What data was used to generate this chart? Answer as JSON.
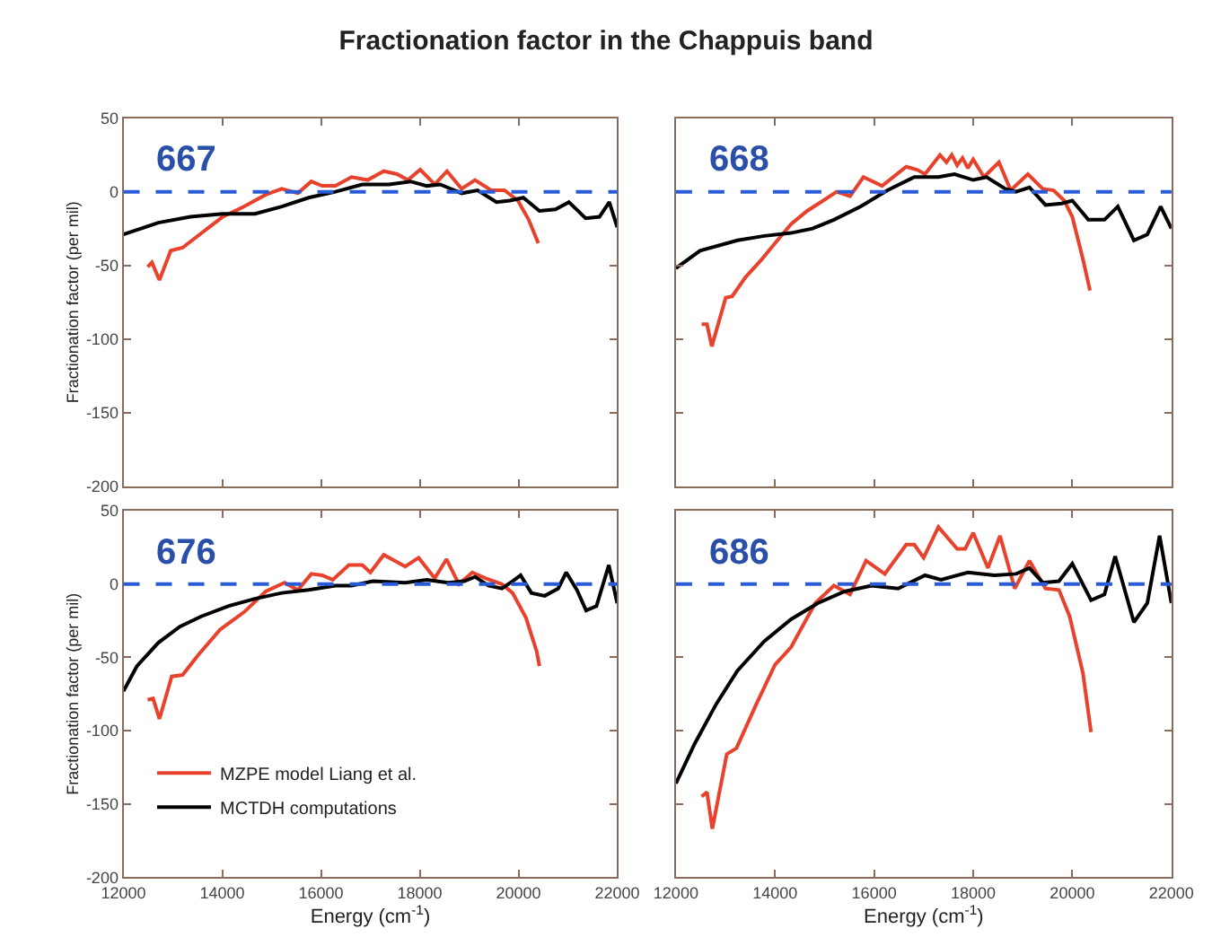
{
  "chart_data": [
    {
      "type": "line",
      "title": "Fractionation factor in the Chappuis band",
      "ylabel": "Fractionation factor (per mil)",
      "annotations": [
        "667"
      ],
      "xlim": [
        12000,
        22000
      ],
      "xticks": [
        12000,
        14000,
        16000,
        18000,
        20000,
        22000
      ],
      "ylim": [
        -200,
        50
      ],
      "yticks": [
        -200,
        -150,
        -100,
        -50,
        0,
        50
      ],
      "tick_labels": "y",
      "ref_lines": [
        {
          "axis": "y",
          "value": 0,
          "color": "#2a5bd7",
          "line_style": "dashed"
        }
      ],
      "series": [
        {
          "color": "#e8412c",
          "x": [
            12490,
            12576,
            12728,
            12957,
            13196,
            13467,
            14010,
            14446,
            14880,
            15207,
            15533,
            15804,
            16022,
            16293,
            16620,
            16945,
            17272,
            17543,
            17760,
            18010,
            18304,
            18554,
            18848,
            19120,
            19446,
            19717,
            19989,
            20207,
            20402
          ],
          "values": [
            -51,
            -48,
            -60,
            -40,
            -38,
            -31,
            -17,
            -10,
            -2,
            2,
            -1,
            7,
            4,
            4,
            10,
            8,
            14,
            12,
            8,
            15,
            5,
            14,
            2,
            8,
            1,
            1,
            -6,
            -19,
            -35
          ]
        },
        {
          "color": "#000000",
          "x": [
            12000,
            12706,
            13359,
            14010,
            14663,
            15207,
            15750,
            16293,
            16837,
            17380,
            17815,
            18141,
            18413,
            18848,
            19174,
            19554,
            19826,
            20098,
            20424,
            20750,
            21022,
            21360,
            21640,
            21840,
            22000
          ],
          "values": [
            -29,
            -21,
            -17,
            -15,
            -15,
            -10,
            -4,
            0,
            5,
            5,
            7,
            4,
            5,
            -1,
            1,
            -7,
            -6,
            -4,
            -13,
            -12,
            -7,
            -18,
            -17,
            -7,
            -24
          ]
        }
      ]
    },
    {
      "type": "line",
      "annotations": [
        "668"
      ],
      "xlim": [
        12000,
        22000
      ],
      "xticks": [
        12000,
        14000,
        16000,
        18000,
        20000,
        22000
      ],
      "ylim": [
        -200,
        50
      ],
      "yticks": [
        -200,
        -150,
        -100,
        -50,
        0,
        50
      ],
      "tick_labels": false,
      "ref_lines": [
        {
          "axis": "y",
          "value": 0,
          "color": "#2a5bd7",
          "line_style": "dashed"
        }
      ],
      "series": [
        {
          "color": "#e8412c",
          "x": [
            12519,
            12627,
            12724,
            13005,
            13135,
            13405,
            13730,
            14000,
            14324,
            14649,
            14973,
            15243,
            15514,
            15784,
            16162,
            16649,
            16865,
            17027,
            17330,
            17460,
            17568,
            17676,
            17784,
            17892,
            18000,
            18216,
            18519,
            18757,
            19103,
            19405,
            19622,
            19838,
            20000,
            20216,
            20357
          ],
          "values": [
            -90,
            -90,
            -105,
            -72,
            -71,
            -58,
            -46,
            -35,
            -22,
            -13,
            -6,
            0,
            -3,
            10,
            4,
            17,
            15,
            12,
            25,
            20,
            25,
            18,
            23,
            16,
            22,
            10,
            20,
            1,
            12,
            2,
            1,
            -6,
            -17,
            -46,
            -67
          ]
        },
        {
          "color": "#000000",
          "x": [
            12000,
            12486,
            13243,
            13784,
            14324,
            14757,
            15189,
            15730,
            16270,
            16811,
            17297,
            17622,
            18000,
            18270,
            18649,
            18865,
            19135,
            19459,
            19784,
            20000,
            20324,
            20649,
            20919,
            21243,
            21514,
            21784,
            22000
          ],
          "values": [
            -52,
            -40,
            -33,
            -30,
            -28,
            -25,
            -19,
            -10,
            1,
            10,
            10,
            12,
            8,
            10,
            2,
            0,
            3,
            -9,
            -8,
            -6,
            -19,
            -19,
            -10,
            -33,
            -29,
            -10,
            -25
          ]
        }
      ]
    },
    {
      "type": "line",
      "ylabel": "Fractionation factor (per mil)",
      "xlabel": "Energy (cm$^{-1}$)",
      "annotations": [
        "676"
      ],
      "xlim": [
        12000,
        22000
      ],
      "xticks": [
        12000,
        14000,
        16000,
        18000,
        20000,
        22000
      ],
      "ylim": [
        -200,
        50
      ],
      "yticks": [
        -200,
        -150,
        -100,
        -50,
        0,
        50
      ],
      "legend": "bottom left",
      "ref_lines": [
        {
          "axis": "y",
          "value": 0,
          "color": "#2a5bd7",
          "line_style": "dashed"
        }
      ],
      "series": [
        {
          "name": "MZPE model Liang et al.",
          "color": "#e8412c",
          "x": [
            12490,
            12600,
            12728,
            12978,
            13196,
            13522,
            13957,
            14446,
            14880,
            15261,
            15533,
            15804,
            16022,
            16239,
            16565,
            16837,
            17000,
            17272,
            17707,
            17978,
            18304,
            18543,
            18793,
            19065,
            19337,
            19663,
            19880,
            20152,
            20370,
            20424
          ],
          "values": [
            -79,
            -78,
            -92,
            -63,
            -62,
            -48,
            -31,
            -19,
            -5,
            1,
            -4,
            7,
            6,
            3,
            13,
            13,
            8,
            20,
            12,
            18,
            4,
            17,
            0,
            8,
            4,
            0,
            -6,
            -23,
            -46,
            -56
          ]
        },
        {
          "name": "MCTDH computations",
          "color": "#000000",
          "x": [
            12000,
            12272,
            12706,
            13141,
            13576,
            14120,
            14663,
            15207,
            15750,
            16293,
            16620,
            17054,
            17707,
            18141,
            18576,
            18902,
            19120,
            19391,
            19663,
            19880,
            20043,
            20261,
            20533,
            20804,
            20967,
            21185,
            21370,
            21580,
            21830,
            22000
          ],
          "values": [
            -73,
            -56,
            -40,
            -29,
            -22,
            -15,
            -10,
            -6,
            -4,
            -1,
            -1,
            2,
            1,
            3,
            1,
            2,
            5,
            -1,
            -3,
            2,
            6,
            -6,
            -8,
            -3,
            8,
            -4,
            -18,
            -15,
            13,
            -13
          ]
        }
      ]
    },
    {
      "type": "line",
      "xlabel": "Energy (cm$^{-1}$)",
      "annotations": [
        "686"
      ],
      "xlim": [
        12000,
        22000
      ],
      "xticks": [
        12000,
        14000,
        16000,
        18000,
        20000,
        22000
      ],
      "ylim": [
        -200,
        50
      ],
      "yticks": [
        -200,
        -150,
        -100,
        -50,
        0,
        50
      ],
      "tick_labels": "x",
      "ref_lines": [
        {
          "axis": "y",
          "value": 0,
          "color": "#2a5bd7",
          "line_style": "dashed"
        }
      ],
      "series": [
        {
          "color": "#e8412c",
          "x": [
            12519,
            12627,
            12735,
            13027,
            13222,
            13622,
            14000,
            14324,
            14811,
            15189,
            15514,
            15838,
            16216,
            16649,
            16811,
            17000,
            17297,
            17676,
            17838,
            18000,
            18297,
            18541,
            18838,
            19135,
            19459,
            19730,
            19946,
            20216,
            20378
          ],
          "values": [
            -145,
            -142,
            -167,
            -116,
            -112,
            -82,
            -55,
            -43,
            -13,
            -1,
            -7,
            16,
            7,
            27,
            27,
            18,
            39,
            24,
            24,
            35,
            11,
            33,
            -3,
            16,
            -3,
            -4,
            -22,
            -61,
            -101
          ]
        },
        {
          "color": "#000000",
          "x": [
            12000,
            12378,
            12811,
            13243,
            13784,
            14324,
            14865,
            15405,
            15946,
            16486,
            17027,
            17351,
            17892,
            18432,
            18865,
            19135,
            19405,
            19730,
            20000,
            20378,
            20649,
            20865,
            21243,
            21514,
            21762,
            22000
          ],
          "values": [
            -136,
            -109,
            -82,
            -59,
            -39,
            -24,
            -13,
            -5,
            -1,
            -3,
            6,
            3,
            8,
            6,
            7,
            11,
            1,
            2,
            14,
            -11,
            -7,
            19,
            -26,
            -13,
            33,
            -13
          ]
        }
      ]
    }
  ]
}
